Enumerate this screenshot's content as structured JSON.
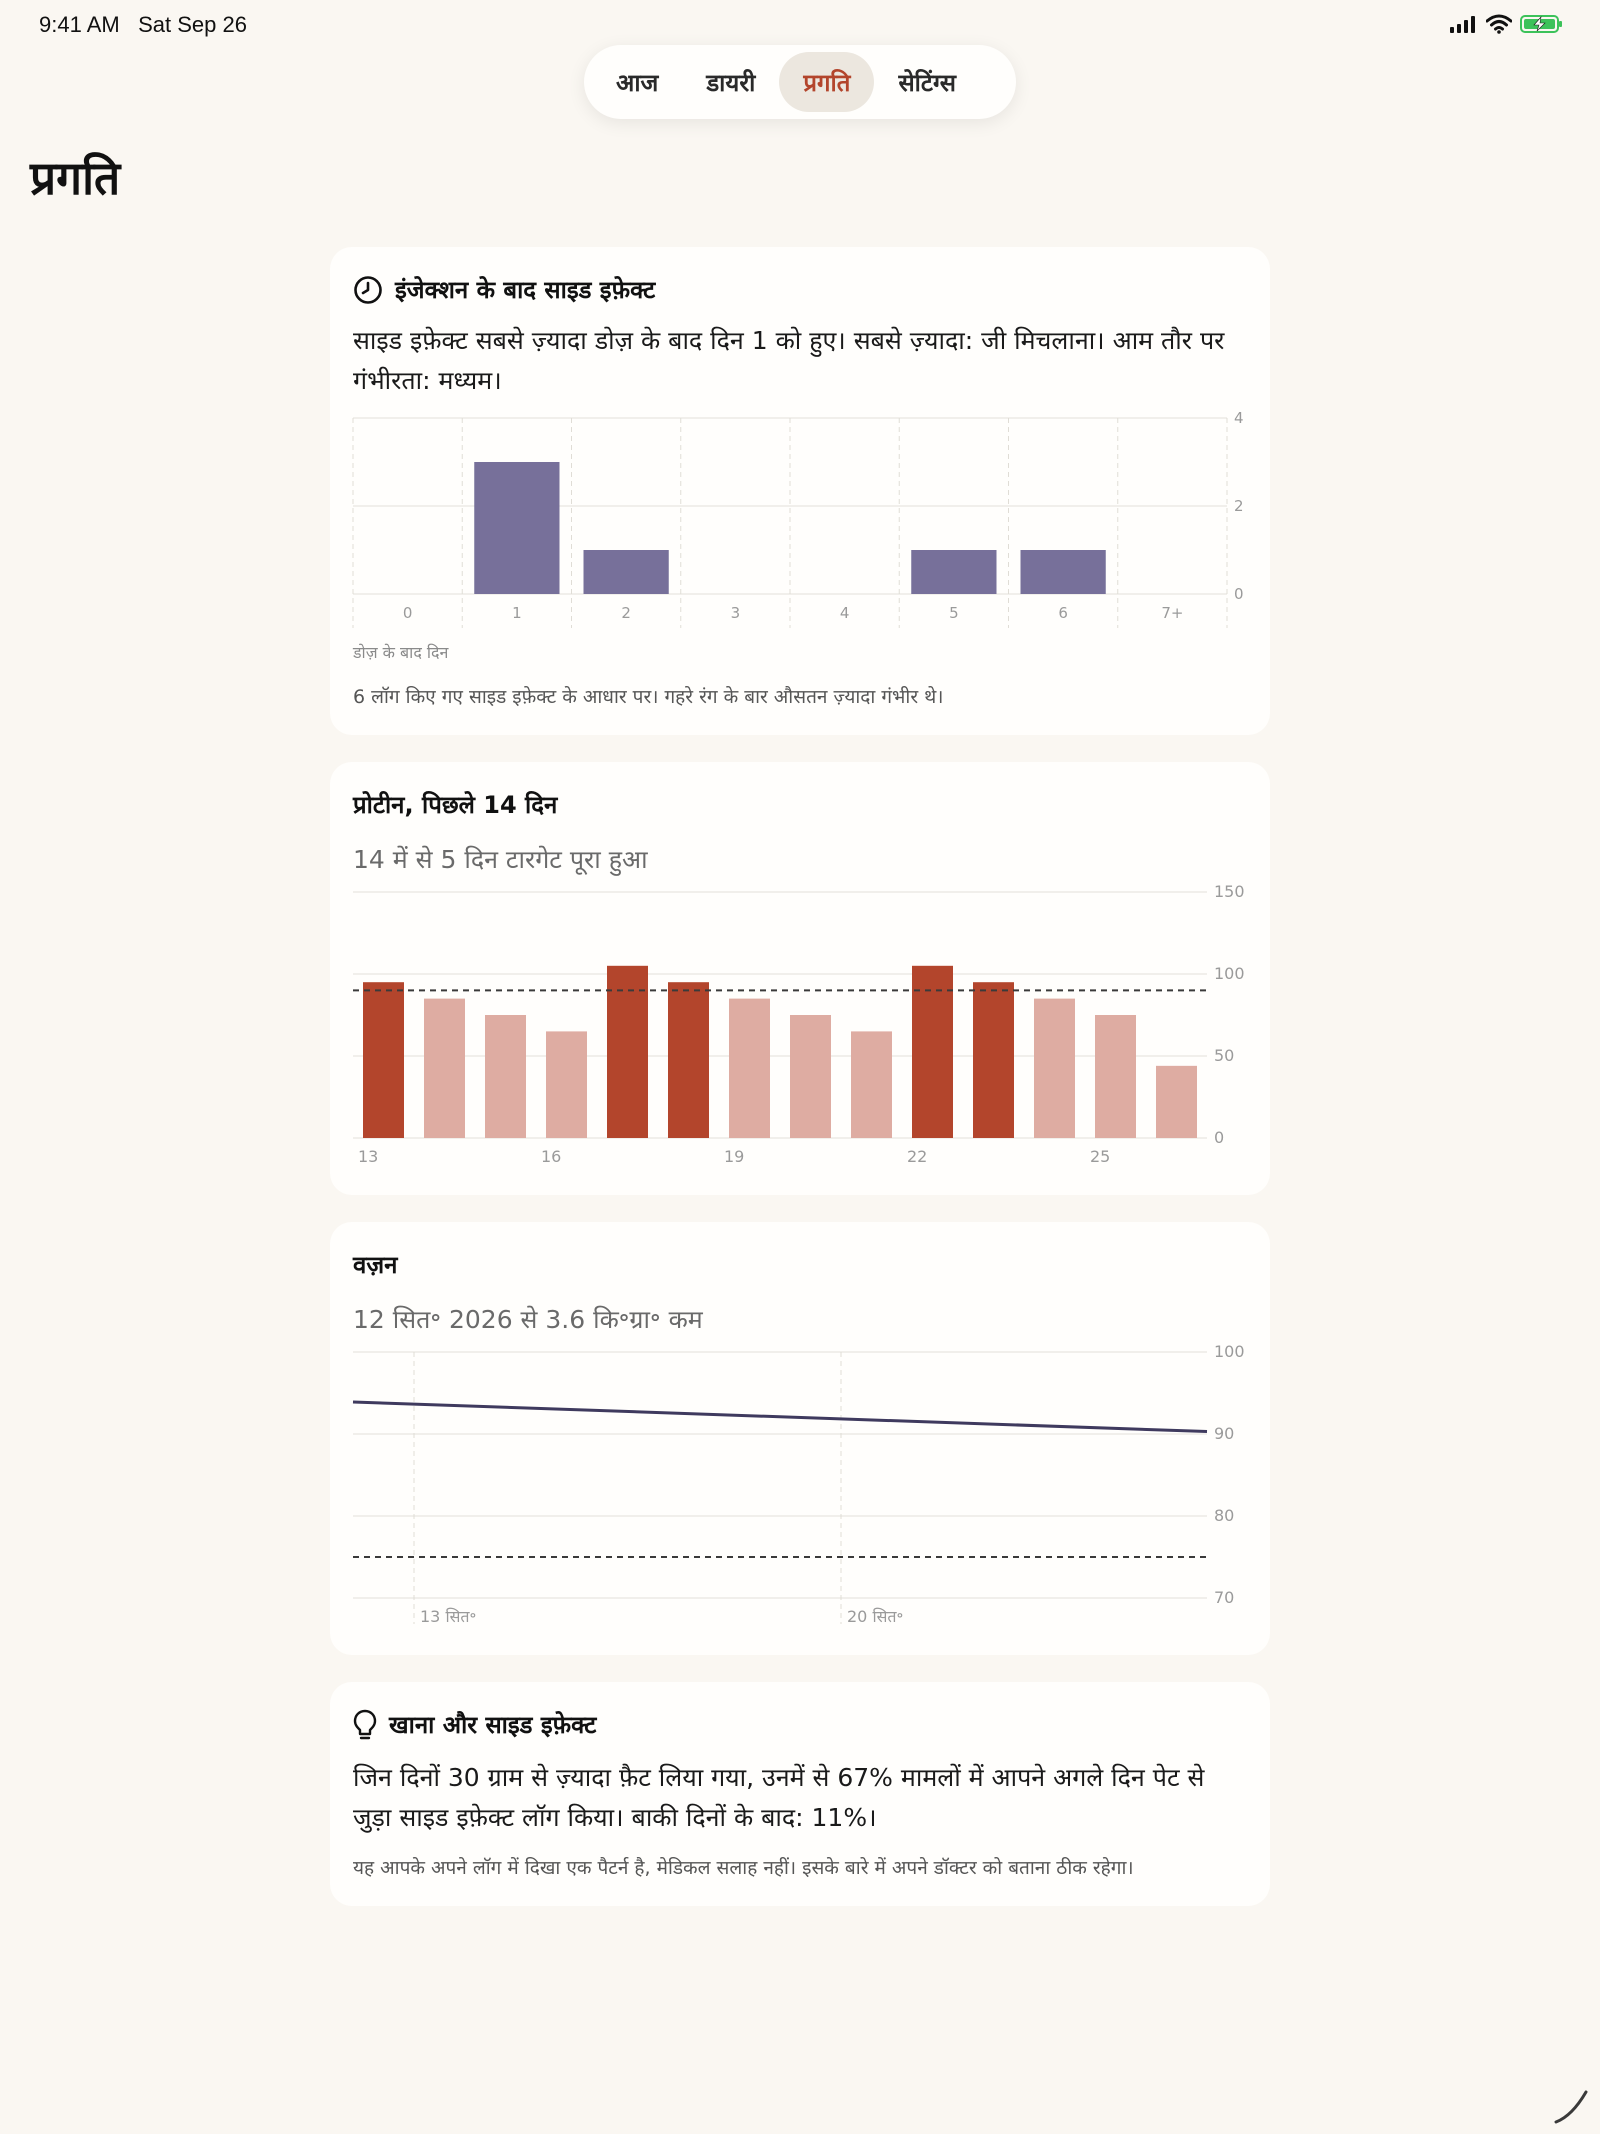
{
  "status_bar": {
    "time": "9:41 AM",
    "date": "Sat Sep 26",
    "icons": [
      "signal-icon",
      "wifi-icon",
      "battery-charging-icon"
    ]
  },
  "tabs": [
    {
      "label": "आज",
      "active": false
    },
    {
      "label": "डायरी",
      "active": false
    },
    {
      "label": "प्रगति",
      "active": true
    },
    {
      "label": "सेटिंग्स",
      "active": false
    }
  ],
  "page_title": "प्रगति",
  "colors": {
    "accent": "#b3452c",
    "accent_light": "#deaca2",
    "purple": "#77709a",
    "line": "#3f3a5e",
    "background": "#faf7f2"
  },
  "side_effects": {
    "icon": "clock-icon",
    "title": "इंजेक्शन के बाद साइड इफ़ेक्ट",
    "summary": "साइड इफ़ेक्ट सबसे ज़्यादा डोज़ के बाद दिन 1 को हुए। सबसे ज़्यादा: जी मिचलाना। आम तौर पर गंभीरता: मध्यम।",
    "xlabel": "डोज़ के बाद दिन",
    "note": "6 लॉग किए गए साइड इफ़ेक्ट के आधार पर। गहरे रंग के बार औसतन ज़्यादा गंभीर थे।"
  },
  "protein": {
    "title": "प्रोटीन, पिछले 14 दिन",
    "summary": "14 में से 5 दिन टारगेट पूरा हुआ"
  },
  "weight": {
    "title": "वज़न",
    "summary": "12 सित॰ 2026 से 3.6 कि॰ग्रा॰ कम"
  },
  "insight": {
    "icon": "lightbulb-icon",
    "title": "खाना और साइड इफ़ेक्ट",
    "body": "जिन दिनों 30 ग्राम से ज़्यादा फ़ैट लिया गया, उनमें से 67% मामलों में आपने अगले दिन पेट से जुड़ा साइड इफ़ेक्ट लॉग किया। बाकी दिनों के बाद: 11%।",
    "note": "यह आपके अपने लॉग में दिखा एक पैटर्न है, मेडिकल सलाह नहीं। इसके बारे में अपने डॉक्टर को बताना ठीक रहेगा।"
  },
  "chart_data": [
    {
      "type": "bar",
      "categories": [
        "0",
        "1",
        "2",
        "3",
        "4",
        "5",
        "6",
        "7+"
      ],
      "values": [
        0,
        3,
        1,
        0,
        0,
        1,
        1,
        0
      ],
      "xlabel": "डोज़ के बाद दिन",
      "ylim": [
        0,
        4
      ],
      "yticks": [
        0,
        2,
        4
      ],
      "grid": true
    },
    {
      "type": "bar",
      "categories": [
        13,
        14,
        15,
        16,
        17,
        18,
        19,
        20,
        21,
        22,
        23,
        24,
        25,
        26
      ],
      "xtick_labels": [
        "13",
        "16",
        "19",
        "22",
        "25"
      ],
      "xtick_values": [
        13,
        16,
        19,
        22,
        25
      ],
      "values": [
        95,
        85,
        75,
        65,
        105,
        95,
        85,
        75,
        65,
        105,
        95,
        85,
        75,
        44
      ],
      "target": 90,
      "target_met": [
        true,
        false,
        false,
        false,
        true,
        true,
        false,
        false,
        false,
        true,
        true,
        false,
        false,
        false
      ],
      "ylim": [
        0,
        150
      ],
      "yticks": [
        0,
        50,
        100,
        150
      ],
      "grid": true
    },
    {
      "type": "line",
      "x_range": [
        12,
        26
      ],
      "xtick_labels": [
        "13 सित॰",
        "20 सित॰"
      ],
      "xtick_values": [
        13,
        20
      ],
      "series": [
        {
          "x": [
            12,
            26
          ],
          "y": [
            93.9,
            90.3
          ]
        }
      ],
      "target": 75,
      "ylim": [
        70,
        100
      ],
      "yticks": [
        70,
        80,
        90,
        100
      ],
      "grid": true
    }
  ]
}
